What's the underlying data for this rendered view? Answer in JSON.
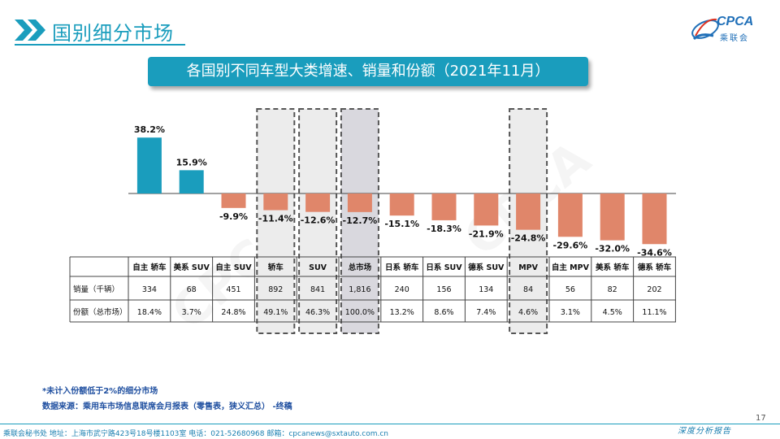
{
  "header": {
    "title": "国别细分市场"
  },
  "logo": {
    "text": "CPCA",
    "cn": "乘联会"
  },
  "banner": {
    "title": "各国别不同车型大类增速、销量和份额（2021年11月）"
  },
  "chart_data": {
    "type": "bar",
    "categories": [
      "自主 轿车",
      "美系 SUV",
      "自主 SUV",
      "轿车",
      "SUV",
      "总市场",
      "日系 轿车",
      "日系 SUV",
      "德系 SUV",
      "MPV",
      "自主 MPV",
      "美系 轿车",
      "德系 轿车"
    ],
    "growth": [
      38.2,
      15.9,
      -9.9,
      -11.4,
      -12.6,
      -12.7,
      -15.1,
      -18.3,
      -21.9,
      -24.8,
      -29.6,
      -32.0,
      -34.6
    ],
    "growth_labels": [
      "38.2%",
      "15.9%",
      "-9.9%",
      "-11.4%",
      "-12.6%",
      "-12.7%",
      "-15.1%",
      "-18.3%",
      "-21.9%",
      "-24.8%",
      "-29.6%",
      "-32.0%",
      "-34.6%"
    ],
    "colors": {
      "positive": "#1a9dbd",
      "negative": "#e0866a",
      "highlight_box": "#555555",
      "highlight_fill": "#ececec",
      "total_fill": "#d9d8de"
    },
    "highlighted_categories": [
      "轿车",
      "SUV",
      "总市场",
      "MPV"
    ],
    "table": {
      "rows": [
        {
          "label": "销量（千辆）",
          "values": [
            "334",
            "68",
            "451",
            "892",
            "841",
            "1,816",
            "240",
            "156",
            "134",
            "84",
            "56",
            "82",
            "202"
          ]
        },
        {
          "label": "份额（总市场）",
          "values": [
            "18.4%",
            "3.7%",
            "24.8%",
            "49.1%",
            "46.3%",
            "100.0%",
            "13.2%",
            "8.6%",
            "7.4%",
            "4.6%",
            "3.1%",
            "4.5%",
            "11.1%"
          ]
        }
      ]
    }
  },
  "notes": {
    "note1": "*未计入份额低于2%的细分市场",
    "note2": "数据来源：乘用车市场信息联席会月报表（零售表，狭义汇总） -终稿"
  },
  "footer": {
    "page": "17",
    "address": "乘联会秘书处   地址：上海市武宁路423号18号楼1103室   电话：021-52680968   邮箱：cpcanews@sxtauto.com.cn",
    "report": "深度分析报告"
  }
}
